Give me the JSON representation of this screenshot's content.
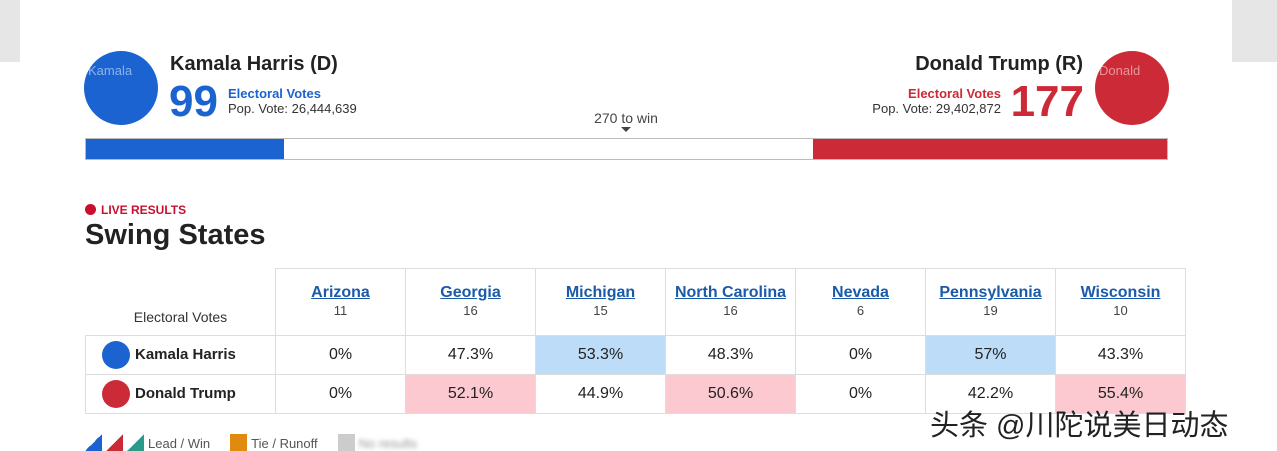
{
  "header": {
    "harris": {
      "name": "Kamala Harris (D)",
      "avatar_alt": "Kamala",
      "electoral_votes": 99,
      "ev_label": "Electoral Votes",
      "pop_label": "Pop. Vote:",
      "pop_vote": "26,444,639",
      "color": "#1b63d0"
    },
    "trump": {
      "name": "Donald Trump (R)",
      "avatar_alt": "Donald",
      "electoral_votes": 177,
      "ev_label": "Electoral Votes",
      "pop_label": "Pop. Vote:",
      "pop_vote": "29,402,872",
      "color": "#cc2a36"
    },
    "threshold": 270,
    "threshold_label": "to win"
  },
  "live_label": "LIVE RESULTS",
  "section_title": "Swing States",
  "table": {
    "corner": "Electoral Votes",
    "states": [
      {
        "name": "Arizona",
        "ev": 11
      },
      {
        "name": "Georgia",
        "ev": 16
      },
      {
        "name": "Michigan",
        "ev": 15
      },
      {
        "name": "North Carolina",
        "ev": 16
      },
      {
        "name": "Nevada",
        "ev": 6
      },
      {
        "name": "Pennsylvania",
        "ev": 19
      },
      {
        "name": "Wisconsin",
        "ev": 10
      }
    ],
    "rows": [
      {
        "name": "Kamala Harris",
        "values": [
          "0%",
          "47.3%",
          "53.3%",
          "48.3%",
          "0%",
          "57%",
          "43.3%"
        ],
        "lead_cells": [
          2,
          5
        ],
        "lead_color": "#bcdcf8",
        "avatar_color": "#1b63d0"
      },
      {
        "name": "Donald Trump",
        "values": [
          "0%",
          "52.1%",
          "44.9%",
          "50.6%",
          "0%",
          "42.2%",
          "55.4%"
        ],
        "lead_cells": [
          1,
          3,
          6
        ],
        "lead_color": "#fbc9cf",
        "avatar_color": "#cc2a36"
      }
    ]
  },
  "legend": [
    {
      "label": "Lead / Win"
    },
    {
      "label": "Tie / Runoff"
    },
    {
      "label": "No results"
    }
  ],
  "watermark": "头条 @川陀说美日动态"
}
